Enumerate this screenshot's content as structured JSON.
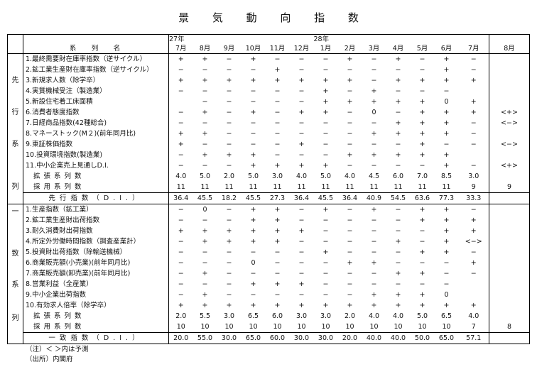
{
  "title": "景 気 動 向 指 数",
  "header": {
    "series_label": "系　列　名",
    "year1": "27年",
    "year2": "28年",
    "months": [
      "7月",
      "8月",
      "9月",
      "10月",
      "11月",
      "12月",
      "1月",
      "2月",
      "3月",
      "4月",
      "5月",
      "6月",
      "7月"
    ],
    "forecast_month": "8月"
  },
  "leading": {
    "side_label": [
      "先",
      "行",
      "系",
      "列"
    ],
    "rows": [
      {
        "name": "1.最終需要財在庫率指数（逆サイクル）",
        "values": [
          "+",
          "+",
          "−",
          "+",
          "−",
          "−",
          "−",
          "+",
          "−",
          "+",
          "−",
          "+",
          "−"
        ],
        "forecast": ""
      },
      {
        "name": "2.鉱工業生産財在庫率指数（逆サイクル）",
        "values": [
          "−",
          "−",
          "−",
          "−",
          "+",
          "−",
          "−",
          "−",
          "−",
          "−",
          "−",
          "+",
          "−"
        ],
        "forecast": ""
      },
      {
        "name": "3.新規求人数（除学卒）",
        "values": [
          "+",
          "+",
          "+",
          "+",
          "+",
          "+",
          "+",
          "+",
          "−",
          "+",
          "+",
          "+",
          "+"
        ],
        "forecast": ""
      },
      {
        "name": "4.実質機械受注（製造業）",
        "values": [
          "−",
          "−",
          "−",
          "−",
          "−",
          "−",
          "+",
          "−",
          "+",
          "−",
          "−",
          "−",
          ""
        ],
        "forecast": ""
      },
      {
        "name": "5.新設住宅着工床面積",
        "values": [
          "",
          "−",
          "−",
          "−",
          "−",
          "−",
          "+",
          "+",
          "+",
          "+",
          "+",
          "0",
          "+"
        ],
        "forecast": ""
      },
      {
        "name": "6.消費者態度指数",
        "values": [
          "−",
          "+",
          "−",
          "+",
          "−",
          "+",
          "+",
          "−",
          "0",
          "−",
          "+",
          "+",
          "+"
        ],
        "forecast": "<+>"
      },
      {
        "name": "7.日経商品指数(42種総合)",
        "values": [
          "−",
          "−",
          "−",
          "−",
          "−",
          "−",
          "−",
          "−",
          "−",
          "+",
          "+",
          "+",
          "−"
        ],
        "forecast": "<−>"
      },
      {
        "name": "8.マネーストック(M２)(前年同月比)",
        "values": [
          "+",
          "+",
          "−",
          "−",
          "−",
          "−",
          "−",
          "−",
          "+",
          "+",
          "+",
          "+",
          "−"
        ],
        "forecast": ""
      },
      {
        "name": "9.東証株価指数",
        "values": [
          "+",
          "−",
          "−",
          "−",
          "−",
          "+",
          "−",
          "−",
          "−",
          "−",
          "+",
          "−",
          "−"
        ],
        "forecast": "<−>"
      },
      {
        "name": "10.投資環境指数(製造業)",
        "values": [
          "−",
          "+",
          "+",
          "+",
          "−",
          "−",
          "−",
          "+",
          "+",
          "+",
          "+",
          "+",
          ""
        ],
        "forecast": ""
      },
      {
        "name": "11.中小企業売上見通しD.I.",
        "values": [
          "−",
          "−",
          "−",
          "+",
          "+",
          "+",
          "+",
          "−",
          "−",
          "−",
          "−",
          "+",
          "−"
        ],
        "forecast": "<+>"
      }
    ],
    "expanded": {
      "name": "拡張系列数",
      "values": [
        "4.0",
        "5.0",
        "2.0",
        "5.0",
        "3.0",
        "4.0",
        "5.0",
        "4.0",
        "4.5",
        "6.0",
        "7.0",
        "8.5",
        "3.0"
      ],
      "forecast": ""
    },
    "adopted": {
      "name": "採用系列数",
      "values": [
        "11",
        "11",
        "11",
        "11",
        "11",
        "11",
        "11",
        "11",
        "11",
        "11",
        "11",
        "11",
        "9"
      ],
      "forecast": "9"
    },
    "di": {
      "name": "先行指数（D.I.）",
      "values": [
        "36.4",
        "45.5",
        "18.2",
        "45.5",
        "27.3",
        "36.4",
        "45.5",
        "36.4",
        "40.9",
        "54.5",
        "63.6",
        "77.3",
        "33.3"
      ],
      "forecast": ""
    }
  },
  "coincident": {
    "side_label": [
      "一",
      "致",
      "系",
      "列"
    ],
    "rows": [
      {
        "name": "1.生産指数（鉱工業）",
        "values": [
          "−",
          "0",
          "−",
          "+",
          "+",
          "−",
          "+",
          "−",
          "+",
          "−",
          "+",
          "+",
          "−"
        ],
        "forecast": ""
      },
      {
        "name": "2.鉱工業生産財出荷指数",
        "values": [
          "−",
          "−",
          "−",
          "+",
          "+",
          "−",
          "−",
          "−",
          "−",
          "−",
          "+",
          "+",
          "+"
        ],
        "forecast": ""
      },
      {
        "name": "3.耐久消費財出荷指数",
        "values": [
          "+",
          "+",
          "+",
          "+",
          "+",
          "+",
          "−",
          "−",
          "−",
          "−",
          "−",
          "+",
          "+"
        ],
        "forecast": ""
      },
      {
        "name": "4.所定外労働時間指数（調査産業計）",
        "values": [
          "−",
          "+",
          "+",
          "+",
          "+",
          "−",
          "−",
          "−",
          "−",
          "+",
          "−",
          "+",
          "<−>"
        ],
        "forecast": ""
      },
      {
        "name": "5.投資財出荷指数（除輸送機械）",
        "values": [
          "−",
          "−",
          "−",
          "−",
          "−",
          "−",
          "+",
          "−",
          "−",
          "−",
          "+",
          "+",
          "−"
        ],
        "forecast": ""
      },
      {
        "name": "6.商業販売額(小売業)(前年同月比)",
        "values": [
          "−",
          "−",
          "−",
          "0",
          "−",
          "−",
          "−",
          "+",
          "+",
          "−",
          "−",
          "−",
          "+"
        ],
        "forecast": ""
      },
      {
        "name": "7.商業販売額(卸売業)(前年同月比)",
        "values": [
          "−",
          "+",
          "−",
          "−",
          "−",
          "−",
          "−",
          "−",
          "−",
          "+",
          "+",
          "−",
          "−"
        ],
        "forecast": ""
      },
      {
        "name": "8.営業利益（全産業）",
        "values": [
          "−",
          "−",
          "−",
          "+",
          "+",
          "+",
          "−",
          "−",
          "−",
          "−",
          "−",
          "−",
          ""
        ],
        "forecast": ""
      },
      {
        "name": "9.中小企業出荷指数",
        "values": [
          "−",
          "+",
          "−",
          "−",
          "−",
          "−",
          "−",
          "−",
          "+",
          "+",
          "+",
          "0",
          ""
        ],
        "forecast": ""
      },
      {
        "name": "10.有効求人倍率（除学卒）",
        "values": [
          "+",
          "+",
          "+",
          "+",
          "+",
          "+",
          "+",
          "+",
          "+",
          "+",
          "+",
          "+",
          "+"
        ],
        "forecast": ""
      }
    ],
    "expanded": {
      "name": "拡張系列数",
      "values": [
        "2.0",
        "5.5",
        "3.0",
        "6.5",
        "6.0",
        "3.0",
        "3.0",
        "2.0",
        "4.0",
        "4.0",
        "5.0",
        "6.5",
        "4.0"
      ],
      "forecast": ""
    },
    "adopted": {
      "name": "採用系列数",
      "values": [
        "10",
        "10",
        "10",
        "10",
        "10",
        "10",
        "10",
        "10",
        "10",
        "10",
        "10",
        "10",
        "7"
      ],
      "forecast": "8"
    },
    "di": {
      "name": "一致指数（D.I.）",
      "values": [
        "20.0",
        "55.0",
        "30.0",
        "65.0",
        "60.0",
        "30.0",
        "30.0",
        "20.0",
        "40.0",
        "40.0",
        "50.0",
        "65.0",
        "57.1"
      ],
      "forecast": ""
    }
  },
  "notes": [
    "（注）＜ ＞内は予測",
    "（出所）内閣府"
  ]
}
